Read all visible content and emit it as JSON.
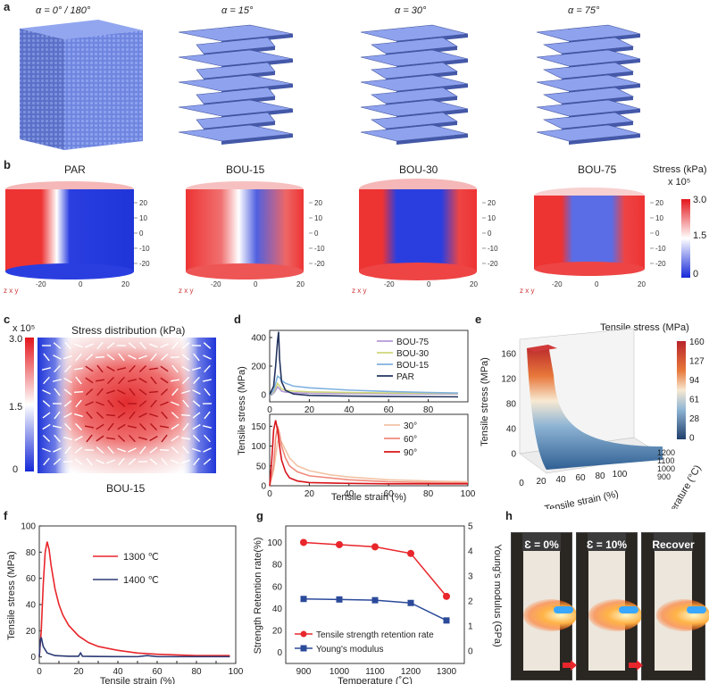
{
  "labels": {
    "a": "a",
    "b": "b",
    "c": "c",
    "d": "d",
    "e": "e",
    "f": "f",
    "g": "g",
    "h": "h"
  },
  "panel_a": {
    "captions": [
      "α = 0° / 180°",
      "α = 15°",
      "α = 30°",
      "α = 75°"
    ]
  },
  "panel_b": {
    "titles": [
      "PAR",
      "BOU-15",
      "BOU-30",
      "BOU-75"
    ],
    "axis_ticks": [
      "20",
      "10",
      "0",
      "-10",
      "-20"
    ],
    "x_ticks": [
      "-20",
      "0",
      "20"
    ],
    "colorbar_title": "Stress (kPa)",
    "colorbar_scale": "x 10⁵",
    "colorbar_ticks": [
      "3.0",
      "1.5",
      "0"
    ],
    "axis_label": "z x y"
  },
  "panel_c": {
    "title": "Stress distribution (kPa)",
    "scale": "x 10⁵",
    "colorbar_ticks": [
      "3.0",
      "1.5",
      "0"
    ],
    "sample": "BOU-15"
  },
  "colors": {
    "red": "#e8262b",
    "blue": "#1f3bdc",
    "navy": "#2b3a75",
    "bg": "#ffffff"
  },
  "chart_data": [
    {
      "id": "d-top",
      "type": "line",
      "ylabel": "Tensile stress (MPa)",
      "xlim": [
        0,
        100
      ],
      "ylim": [
        -50,
        450
      ],
      "yticks": [
        0,
        200,
        400
      ],
      "xticks": [
        0,
        20,
        40,
        60,
        80
      ],
      "series": [
        {
          "name": "BOU-75",
          "color": "#b49ad6",
          "x": [
            0,
            2,
            3,
            4,
            5,
            6,
            8,
            12,
            20,
            40,
            60,
            80,
            95
          ],
          "y": [
            0,
            10,
            30,
            55,
            40,
            25,
            18,
            14,
            10,
            8,
            6,
            5,
            5
          ]
        },
        {
          "name": "BOU-30",
          "color": "#cfd77a",
          "x": [
            0,
            2,
            3,
            4,
            5,
            6,
            8,
            12,
            20,
            40,
            60,
            80,
            95
          ],
          "y": [
            0,
            20,
            50,
            80,
            60,
            40,
            32,
            25,
            20,
            15,
            12,
            10,
            9
          ]
        },
        {
          "name": "BOU-15",
          "color": "#7fb1e0",
          "x": [
            0,
            2,
            3,
            4,
            5,
            6,
            8,
            12,
            20,
            40,
            60,
            80,
            95
          ],
          "y": [
            0,
            30,
            80,
            130,
            120,
            100,
            80,
            60,
            48,
            32,
            22,
            15,
            12
          ]
        },
        {
          "name": "PAR",
          "color": "#24345e",
          "x": [
            0,
            2,
            3,
            4,
            4.5,
            5,
            6,
            8,
            12,
            20,
            40,
            60,
            80,
            95
          ],
          "y": [
            0,
            60,
            200,
            380,
            440,
            250,
            90,
            30,
            5,
            -5,
            -10,
            -12,
            -14,
            -15
          ]
        }
      ]
    },
    {
      "id": "d-bottom",
      "type": "line",
      "xlabel": "Tensile strain (%)",
      "xlim": [
        0,
        100
      ],
      "ylim": [
        0,
        180
      ],
      "yticks": [
        0,
        50,
        100,
        150
      ],
      "xticks": [
        0,
        20,
        40,
        60,
        80,
        100
      ],
      "series": [
        {
          "name": "30°",
          "color": "#f2c3a4",
          "x": [
            0,
            2,
            4,
            5,
            6,
            8,
            10,
            14,
            20,
            30,
            40,
            60,
            80,
            100
          ],
          "y": [
            0,
            40,
            110,
            120,
            110,
            90,
            70,
            50,
            38,
            28,
            22,
            15,
            12,
            10
          ]
        },
        {
          "name": "60°",
          "color": "#f08a7a",
          "x": [
            0,
            2,
            3,
            4,
            5,
            6,
            8,
            10,
            14,
            20,
            40,
            60,
            80,
            100
          ],
          "y": [
            0,
            50,
            120,
            150,
            130,
            100,
            70,
            50,
            35,
            25,
            15,
            10,
            8,
            7
          ]
        },
        {
          "name": "90°",
          "color": "#d8141b",
          "x": [
            0,
            1,
            2,
            3,
            4,
            5,
            6,
            8,
            10,
            14,
            20,
            40,
            60,
            100
          ],
          "y": [
            0,
            60,
            140,
            165,
            140,
            100,
            65,
            35,
            20,
            12,
            8,
            6,
            5,
            5
          ]
        }
      ]
    },
    {
      "id": "e",
      "type": "area",
      "title": "Tensile stress (MPa)",
      "zlabel": "Tensile stress (MPa)",
      "xlabel": "Tensile strain (%)",
      "ylabel": "Temperature (°C)",
      "zticks": [
        0,
        40,
        80,
        120,
        160
      ],
      "xticks": [
        0,
        20,
        40,
        60,
        80,
        100
      ],
      "yticks": [
        900,
        1000,
        1100,
        1200
      ],
      "colorbar_ticks": [
        "160",
        "127",
        "94",
        "61",
        "28",
        "0"
      ]
    },
    {
      "id": "f",
      "type": "line",
      "xlabel": "Tensile strain (%)",
      "ylabel": "Tensile stress  (MPa)",
      "xlim": [
        0,
        100
      ],
      "ylim": [
        -5,
        100
      ],
      "yticks": [
        0,
        20,
        40,
        60,
        80,
        100
      ],
      "xticks": [
        0,
        10,
        20,
        30,
        40,
        50,
        60,
        70,
        80,
        90,
        100
      ],
      "series": [
        {
          "name": "1300 ℃",
          "color": "#e8262b",
          "x": [
            0,
            1,
            2,
            3,
            4,
            5,
            6,
            8,
            10,
            12,
            15,
            20,
            25,
            30,
            40,
            50,
            60,
            70,
            80,
            90,
            97
          ],
          "y": [
            0,
            20,
            55,
            80,
            88,
            82,
            70,
            52,
            40,
            32,
            24,
            16,
            11,
            8,
            5,
            3,
            2,
            1.5,
            1,
            1,
            1
          ]
        },
        {
          "name": "1400 ℃",
          "color": "#2b3a75",
          "x": [
            0,
            0.5,
            1,
            2,
            4,
            8,
            15,
            20,
            21,
            22,
            30,
            50,
            55,
            60,
            80,
            97
          ],
          "y": [
            0,
            12,
            15,
            8,
            3,
            1,
            0.5,
            0.5,
            3,
            0.5,
            0.3,
            0.2,
            1,
            0.2,
            0.2,
            0.2
          ]
        }
      ]
    },
    {
      "id": "g",
      "type": "line",
      "xlabel": "Temperature (˚C)",
      "ylabel": "Strength Retention rate(%)",
      "y2label": "Young's modulus (GPa)",
      "categories": [
        900,
        1000,
        1100,
        1200,
        1300
      ],
      "ylim": [
        -10,
        115
      ],
      "yticks": [
        0,
        20,
        40,
        60,
        80,
        100
      ],
      "y2lim": [
        -0.5,
        5
      ],
      "y2ticks": [
        0,
        1,
        2,
        3,
        4,
        5
      ],
      "series": [
        {
          "name": "Tensile strength retention rate",
          "color": "#e8262b",
          "marker": "circle",
          "axis": "left",
          "values": [
            100,
            98,
            96,
            90,
            51
          ]
        },
        {
          "name": "Young's modulus",
          "color": "#2b4a9a",
          "marker": "square",
          "axis": "right",
          "values": [
            2.08,
            2.06,
            2.03,
            1.92,
            1.22
          ]
        }
      ]
    }
  ],
  "panel_h": {
    "captions": [
      "Ɛ = 0%",
      "Ɛ = 10%",
      "Recover"
    ]
  }
}
